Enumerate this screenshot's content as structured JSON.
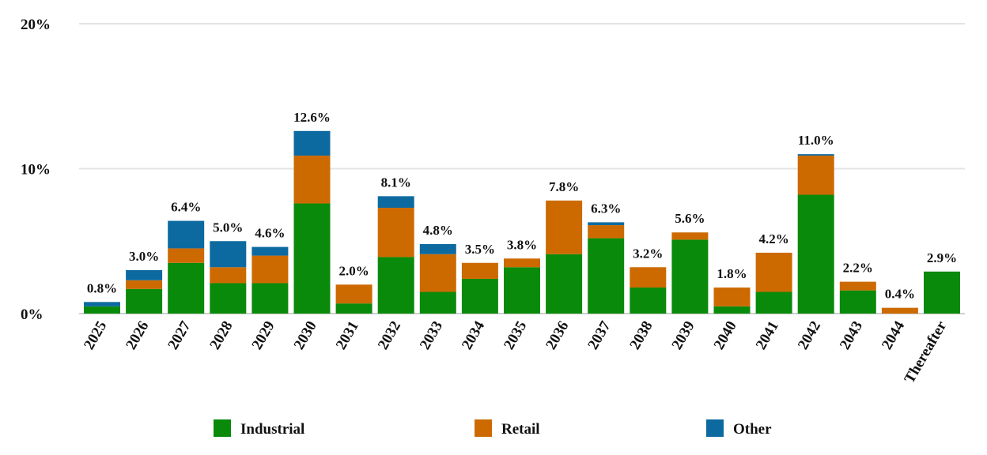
{
  "chart_data": {
    "type": "bar",
    "stacked": true,
    "title": "",
    "xlabel": "",
    "ylabel": "",
    "ylim": [
      0,
      20
    ],
    "yticks": [
      0,
      10,
      20
    ],
    "ytick_labels": [
      "0%",
      "10%",
      "20%"
    ],
    "grid": true,
    "legend_position": "bottom",
    "categories": [
      "2025",
      "2026",
      "2027",
      "2028",
      "2029",
      "2030",
      "2031",
      "2032",
      "2033",
      "2034",
      "2035",
      "2036",
      "2037",
      "2038",
      "2039",
      "2040",
      "2041",
      "2042",
      "2043",
      "2044",
      "Thereafter"
    ],
    "series": [
      {
        "name": "Industrial",
        "color": "#0a8a0a",
        "values": [
          0.5,
          1.7,
          3.5,
          2.1,
          2.1,
          7.6,
          0.7,
          3.9,
          1.5,
          2.4,
          3.2,
          4.1,
          5.2,
          1.8,
          5.1,
          0.5,
          1.5,
          8.2,
          1.6,
          0.0,
          2.9
        ]
      },
      {
        "name": "Retail",
        "color": "#cc6a00",
        "values": [
          0.0,
          0.6,
          1.0,
          1.1,
          1.9,
          3.3,
          1.3,
          3.4,
          2.6,
          1.1,
          0.6,
          3.7,
          0.9,
          1.4,
          0.5,
          1.3,
          2.7,
          2.7,
          0.6,
          0.4,
          0.0
        ]
      },
      {
        "name": "Other",
        "color": "#0d6aa0",
        "values": [
          0.3,
          0.7,
          1.9,
          1.8,
          0.6,
          1.7,
          0.0,
          0.8,
          0.7,
          0.0,
          0.0,
          0.0,
          0.2,
          0.0,
          0.0,
          0.0,
          0.0,
          0.1,
          0.0,
          0.0,
          0.0
        ]
      }
    ],
    "data_labels": [
      "0.8%",
      "3.0%",
      "6.4%",
      "5.0%",
      "4.6%",
      "12.6%",
      "2.0%",
      "8.1%",
      "4.8%",
      "3.5%",
      "3.8%",
      "7.8%",
      "6.3%",
      "3.2%",
      "5.6%",
      "1.8%",
      "4.2%",
      "11.0%",
      "2.2%",
      "0.4%",
      "2.9%"
    ]
  }
}
